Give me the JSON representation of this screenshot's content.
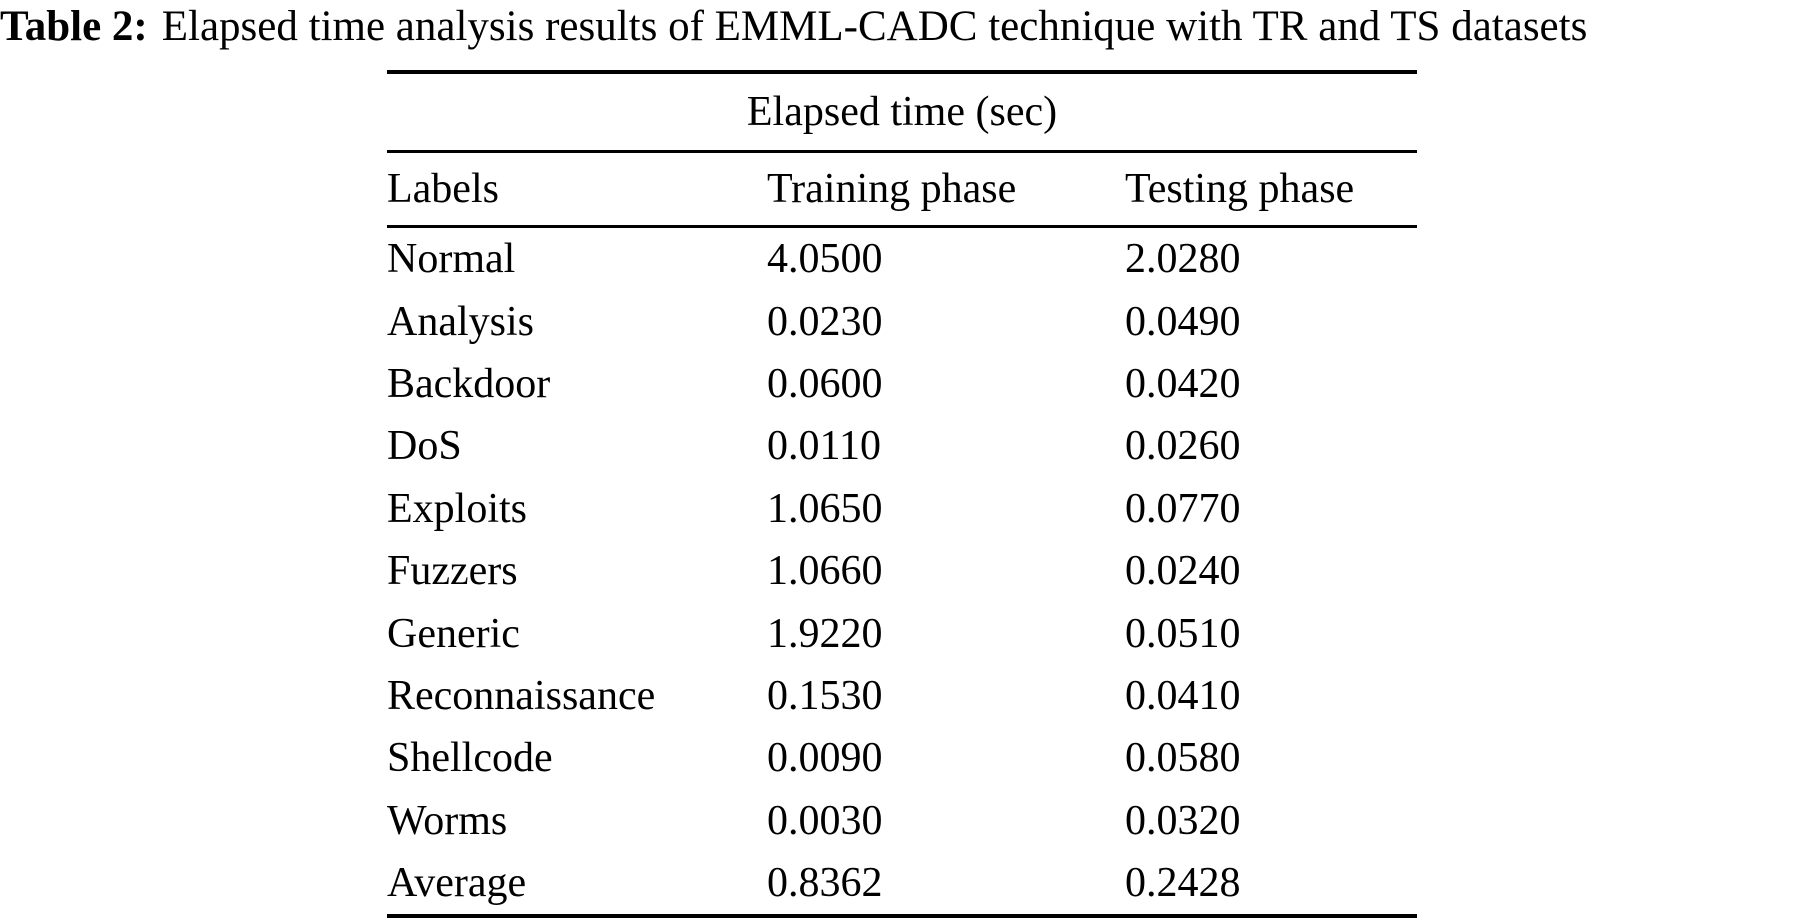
{
  "caption": {
    "label": "Table 2:",
    "text": "Elapsed time analysis results of EMML-CADC technique with TR and TS datasets"
  },
  "table": {
    "group_header": "Elapsed time (sec)",
    "columns": [
      "Labels",
      "Training phase",
      "Testing phase"
    ],
    "rows": [
      {
        "label": "Normal",
        "training": "4.0500",
        "testing": "2.0280"
      },
      {
        "label": "Analysis",
        "training": "0.0230",
        "testing": "0.0490"
      },
      {
        "label": "Backdoor",
        "training": "0.0600",
        "testing": "0.0420"
      },
      {
        "label": "DoS",
        "training": "0.0110",
        "testing": "0.0260"
      },
      {
        "label": "Exploits",
        "training": "1.0650",
        "testing": "0.0770"
      },
      {
        "label": "Fuzzers",
        "training": "1.0660",
        "testing": "0.0240"
      },
      {
        "label": "Generic",
        "training": "1.9220",
        "testing": "0.0510"
      },
      {
        "label": "Reconnaissance",
        "training": "0.1530",
        "testing": "0.0410"
      },
      {
        "label": "Shellcode",
        "training": "0.0090",
        "testing": "0.0580"
      },
      {
        "label": "Worms",
        "training": "0.0030",
        "testing": "0.0320"
      },
      {
        "label": "Average",
        "training": "0.8362",
        "testing": "0.2428"
      }
    ]
  },
  "colors": {
    "text": "#000000",
    "background": "#ffffff",
    "rule": "#000000"
  }
}
